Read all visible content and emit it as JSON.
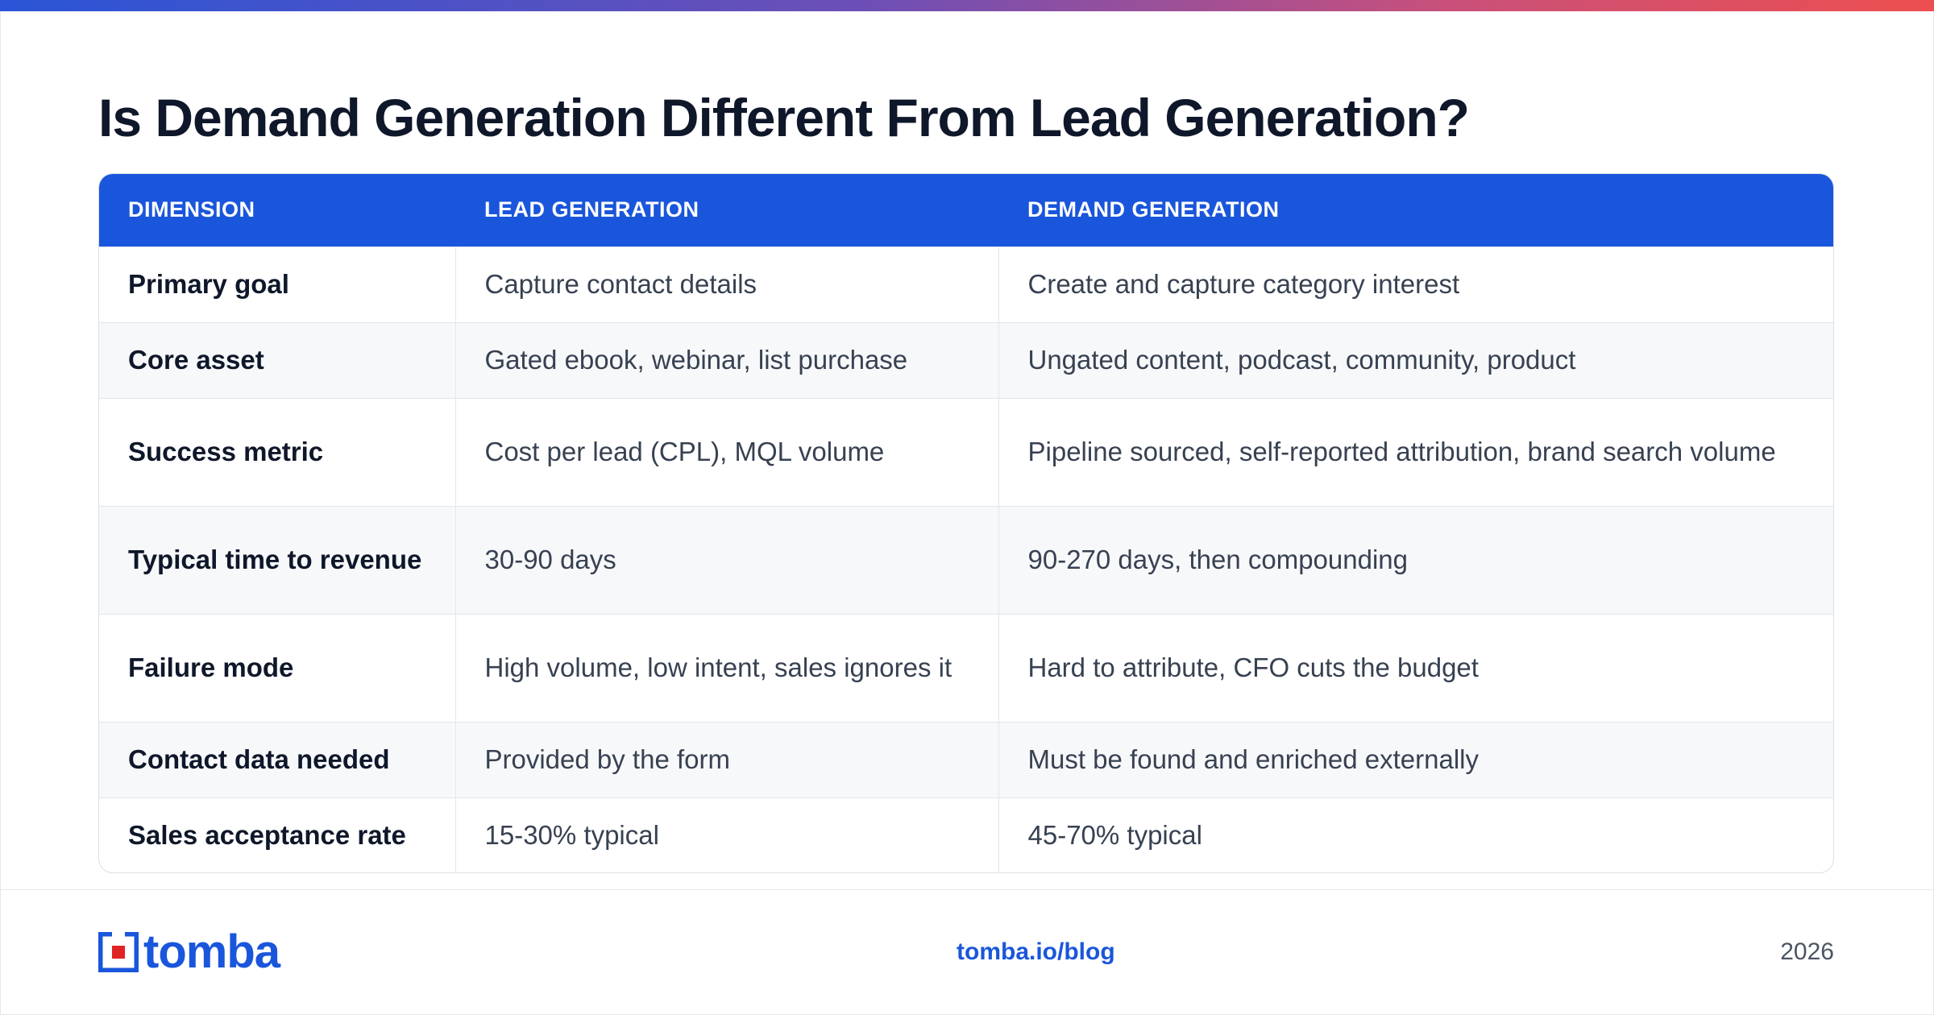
{
  "title": "Is Demand Generation Different From Lead Generation?",
  "table": {
    "headers": [
      "DIMENSION",
      "LEAD GENERATION",
      "DEMAND GENERATION"
    ],
    "rows": [
      [
        "Primary goal",
        "Capture contact details",
        "Create and capture category interest"
      ],
      [
        "Core asset",
        "Gated ebook, webinar, list purchase",
        "Ungated content, podcast, community, product"
      ],
      [
        "Success metric",
        "Cost per lead (CPL), MQL volume",
        "Pipeline sourced, self-reported attribution, brand search volume"
      ],
      [
        "Typical time to revenue",
        "30-90 days",
        "90-270 days, then compounding"
      ],
      [
        "Failure mode",
        "High volume, low intent, sales ignores it",
        "Hard to attribute, CFO cuts the budget"
      ],
      [
        "Contact data needed",
        "Provided by the form",
        "Must be found and enriched externally"
      ],
      [
        "Sales acceptance rate",
        "15-30% typical",
        "45-70% typical"
      ]
    ]
  },
  "footer": {
    "logo_text": "tomba",
    "link": "tomba.io/blog",
    "year": "2026"
  },
  "colors": {
    "accent": "#1a56db",
    "header_bg": "#1a56db",
    "logo_red": "#e02424",
    "title": "#0f172a"
  },
  "icons": {
    "logo": "tomba-logo-mark-icon"
  }
}
